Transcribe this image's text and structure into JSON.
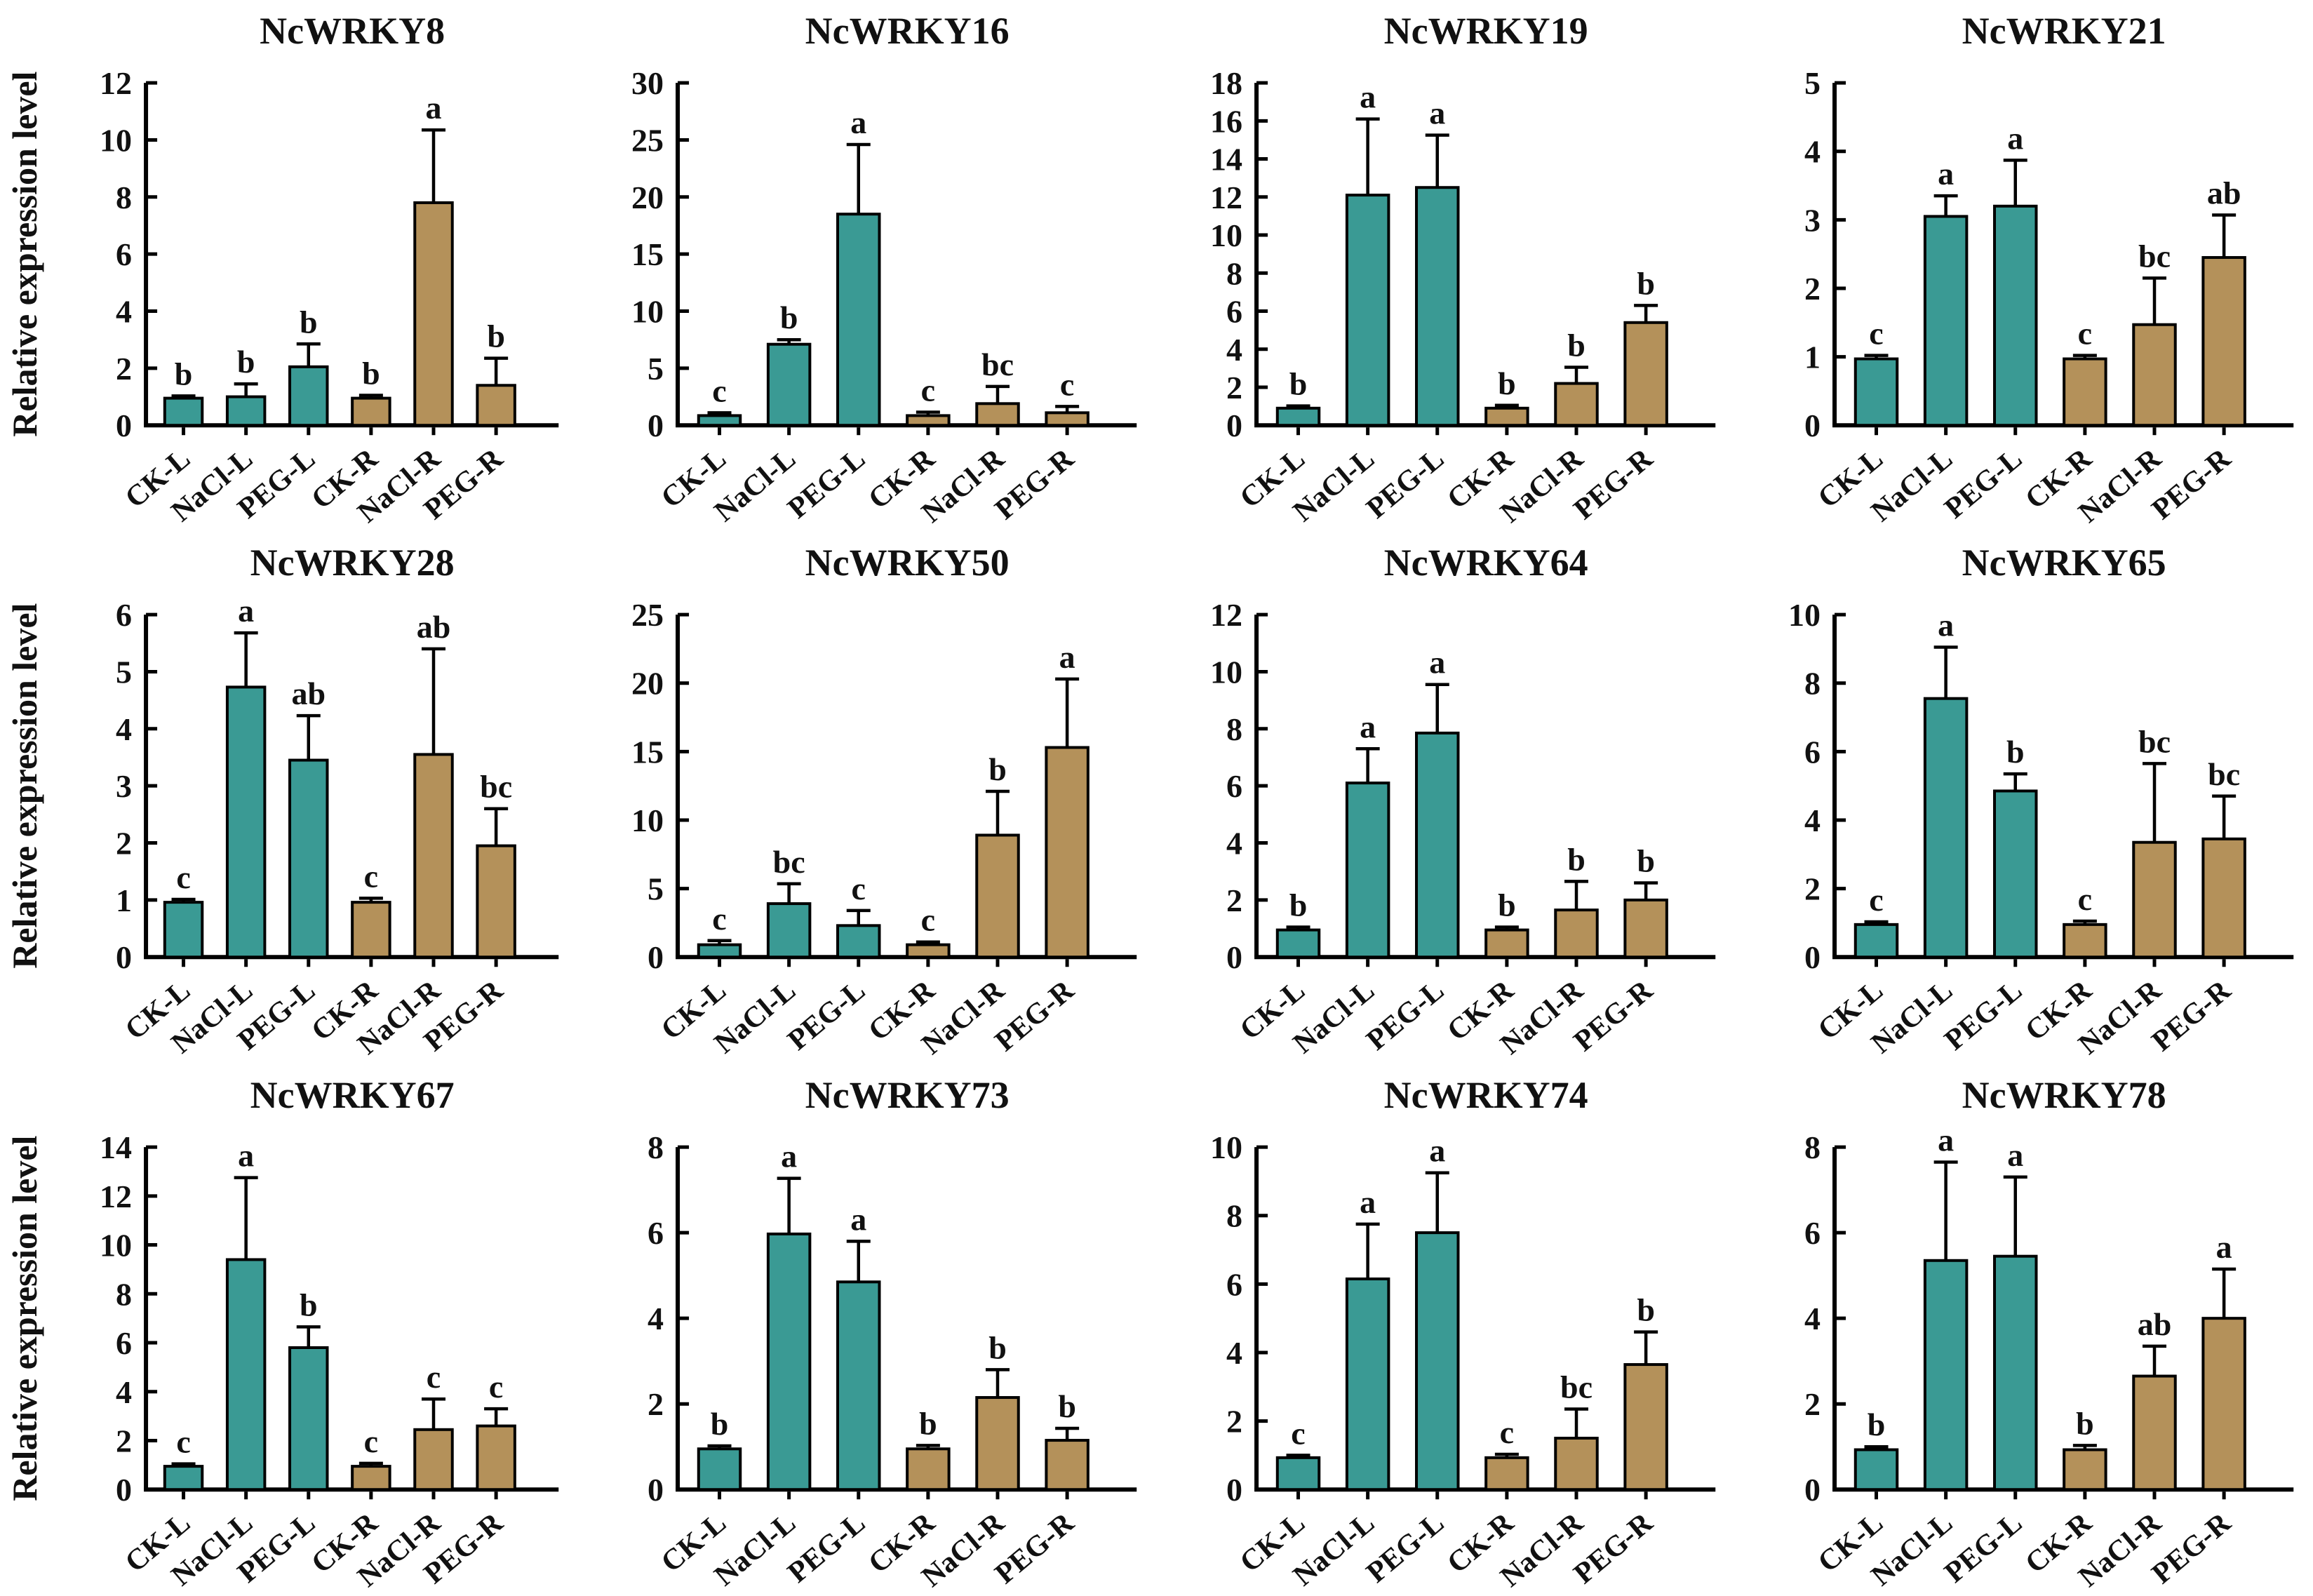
{
  "figure": {
    "background": "#ffffff",
    "ylabel": "Relative expression level",
    "categories": [
      "CK-L",
      "NaCl-L",
      "PEG-L",
      "CK-R",
      "NaCl-R",
      "PEG-R"
    ],
    "colors": {
      "leaf_bar": "#3a9a94",
      "root_bar": "#b4915a",
      "outline": "#000000",
      "axis": "#000000",
      "text": "#111111"
    },
    "bar_color_keys": [
      "leaf_bar",
      "leaf_bar",
      "leaf_bar",
      "root_bar",
      "root_bar",
      "root_bar"
    ],
    "legend_position": "none",
    "grid": "off"
  },
  "chart_data": [
    {
      "type": "bar",
      "title": "NcWRKY8",
      "ylim": [
        0,
        12
      ],
      "ytick_step": 2,
      "show_ylabel": true,
      "values": [
        0.95,
        1.0,
        2.05,
        0.95,
        7.8,
        1.4
      ],
      "errors": [
        0.08,
        0.45,
        0.8,
        0.1,
        2.55,
        0.95
      ],
      "sig_letters": [
        "b",
        "b",
        "b",
        "b",
        "a",
        "b"
      ]
    },
    {
      "type": "bar",
      "title": "NcWRKY16",
      "ylim": [
        0,
        30
      ],
      "ytick_step": 5,
      "show_ylabel": false,
      "values": [
        0.85,
        7.1,
        18.5,
        0.85,
        1.9,
        1.1
      ],
      "errors": [
        0.25,
        0.4,
        6.1,
        0.3,
        1.5,
        0.55
      ],
      "sig_letters": [
        "c",
        "b",
        "a",
        "c",
        "bc",
        "c"
      ]
    },
    {
      "type": "bar",
      "title": "NcWRKY19",
      "ylim": [
        0,
        18
      ],
      "ytick_step": 2,
      "show_ylabel": false,
      "values": [
        0.9,
        12.1,
        12.5,
        0.9,
        2.2,
        5.4
      ],
      "errors": [
        0.12,
        4.0,
        2.75,
        0.15,
        0.85,
        0.9
      ],
      "sig_letters": [
        "b",
        "a",
        "a",
        "b",
        "b",
        "b"
      ]
    },
    {
      "type": "bar",
      "title": "NcWRKY21",
      "ylim": [
        0,
        5
      ],
      "ytick_step": 1,
      "show_ylabel": false,
      "values": [
        0.97,
        3.05,
        3.2,
        0.97,
        1.47,
        2.45
      ],
      "errors": [
        0.05,
        0.3,
        0.67,
        0.05,
        0.68,
        0.62
      ],
      "sig_letters": [
        "c",
        "a",
        "a",
        "c",
        "bc",
        "ab"
      ]
    },
    {
      "type": "bar",
      "title": "NcWRKY28",
      "ylim": [
        0,
        6
      ],
      "ytick_step": 1,
      "show_ylabel": true,
      "values": [
        0.96,
        4.73,
        3.45,
        0.96,
        3.55,
        1.95
      ],
      "errors": [
        0.05,
        0.95,
        0.78,
        0.07,
        1.85,
        0.65
      ],
      "sig_letters": [
        "c",
        "a",
        "ab",
        "c",
        "ab",
        "bc"
      ]
    },
    {
      "type": "bar",
      "title": "NcWRKY50",
      "ylim": [
        0,
        25
      ],
      "ytick_step": 5,
      "show_ylabel": false,
      "values": [
        0.9,
        3.9,
        2.3,
        0.9,
        8.9,
        15.3
      ],
      "errors": [
        0.3,
        1.45,
        1.1,
        0.2,
        3.2,
        5.0
      ],
      "sig_letters": [
        "c",
        "bc",
        "c",
        "c",
        "b",
        "a"
      ]
    },
    {
      "type": "bar",
      "title": "NcWRKY64",
      "ylim": [
        0,
        12
      ],
      "ytick_step": 2,
      "show_ylabel": false,
      "values": [
        0.95,
        6.1,
        7.85,
        0.95,
        1.65,
        2.0
      ],
      "errors": [
        0.1,
        1.2,
        1.7,
        0.1,
        1.0,
        0.6
      ],
      "sig_letters": [
        "b",
        "a",
        "a",
        "b",
        "b",
        "b"
      ]
    },
    {
      "type": "bar",
      "title": "NcWRKY65",
      "ylim": [
        0,
        10
      ],
      "ytick_step": 2,
      "show_ylabel": false,
      "values": [
        0.95,
        7.55,
        4.85,
        0.95,
        3.35,
        3.45
      ],
      "errors": [
        0.08,
        1.5,
        0.5,
        0.1,
        2.3,
        1.25
      ],
      "sig_letters": [
        "c",
        "a",
        "b",
        "c",
        "bc",
        "bc"
      ]
    },
    {
      "type": "bar",
      "title": "NcWRKY67",
      "ylim": [
        0,
        14
      ],
      "ytick_step": 2,
      "show_ylabel": true,
      "values": [
        0.95,
        9.4,
        5.8,
        0.95,
        2.45,
        2.6
      ],
      "errors": [
        0.1,
        3.35,
        0.85,
        0.12,
        1.25,
        0.7
      ],
      "sig_letters": [
        "c",
        "a",
        "b",
        "c",
        "c",
        "c"
      ]
    },
    {
      "type": "bar",
      "title": "NcWRKY73",
      "ylim": [
        0,
        8
      ],
      "ytick_step": 2,
      "show_ylabel": false,
      "values": [
        0.95,
        5.97,
        4.85,
        0.95,
        2.15,
        1.15
      ],
      "errors": [
        0.07,
        1.3,
        0.95,
        0.08,
        0.65,
        0.28
      ],
      "sig_letters": [
        "b",
        "a",
        "a",
        "b",
        "b",
        "b"
      ]
    },
    {
      "type": "bar",
      "title": "NcWRKY74",
      "ylim": [
        0,
        10
      ],
      "ytick_step": 2,
      "show_ylabel": false,
      "values": [
        0.93,
        6.15,
        7.5,
        0.93,
        1.5,
        3.65
      ],
      "errors": [
        0.07,
        1.6,
        1.75,
        0.1,
        0.85,
        0.95
      ],
      "sig_letters": [
        "c",
        "a",
        "a",
        "c",
        "bc",
        "b"
      ]
    },
    {
      "type": "bar",
      "title": "NcWRKY78",
      "ylim": [
        0,
        8
      ],
      "ytick_step": 2,
      "show_ylabel": false,
      "values": [
        0.93,
        5.35,
        5.45,
        0.93,
        2.65,
        4.0
      ],
      "errors": [
        0.07,
        2.3,
        1.85,
        0.1,
        0.7,
        1.15
      ],
      "sig_letters": [
        "b",
        "a",
        "a",
        "b",
        "ab",
        "a"
      ]
    }
  ]
}
